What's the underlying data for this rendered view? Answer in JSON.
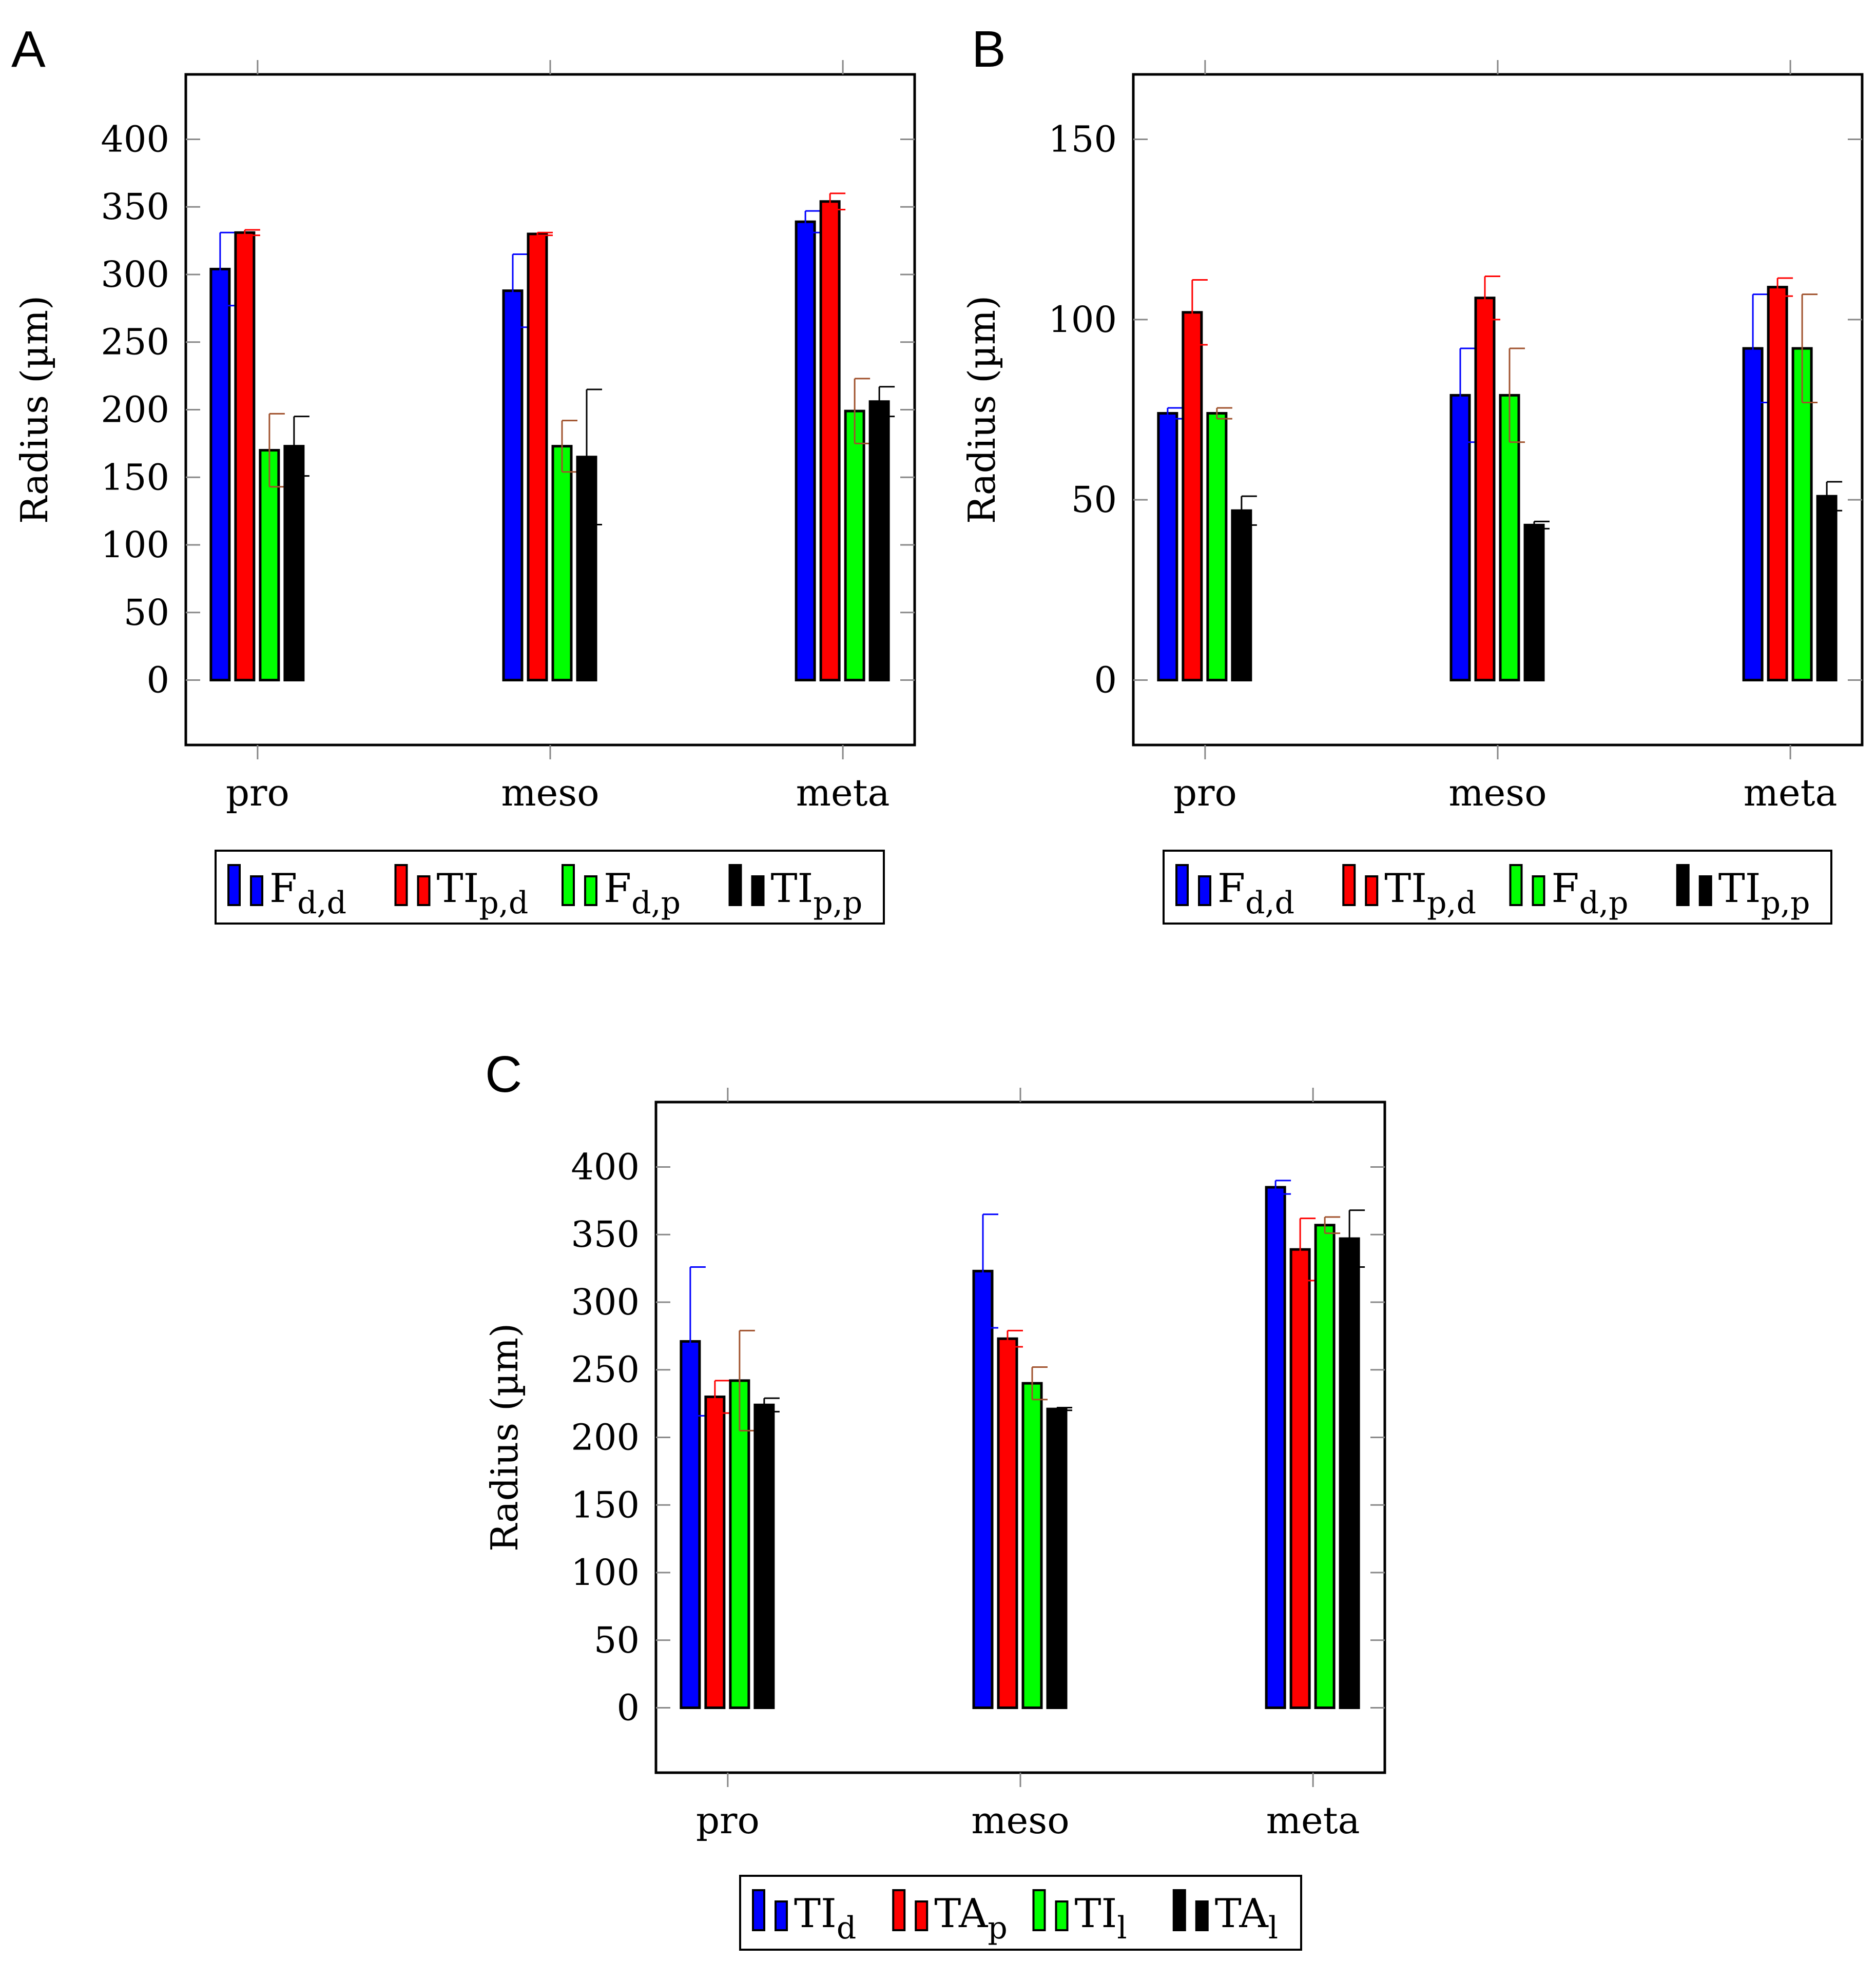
{
  "colors": {
    "blue": "#0000ff",
    "red": "#ff0000",
    "green": "#00ff00",
    "black": "#000000",
    "brown": "#a0522d"
  },
  "chart_data": [
    {
      "panel": "A",
      "type": "bar",
      "categories": [
        "pro",
        "meso",
        "meta"
      ],
      "ylabel": "Radius (µm)",
      "ylim": [
        -48,
        448
      ],
      "yticks": [
        0,
        50,
        100,
        150,
        200,
        250,
        300,
        350,
        400
      ],
      "series": [
        {
          "name": "F",
          "sub": "d,d",
          "color": "#0000ff",
          "errcolor": "#0000ff",
          "values": [
            304,
            288,
            339
          ],
          "err": [
            27,
            27,
            8
          ]
        },
        {
          "name": "TI",
          "sub": "p,d",
          "color": "#ff0000",
          "errcolor": "#ff0000",
          "values": [
            331,
            330,
            354
          ],
          "err": [
            2,
            1,
            6
          ]
        },
        {
          "name": "F",
          "sub": "d,p",
          "color": "#00ff00",
          "errcolor": "#a0522d",
          "values": [
            170,
            173,
            199
          ],
          "err": [
            27,
            19,
            24
          ]
        },
        {
          "name": "TI",
          "sub": "p,p",
          "color": "#000000",
          "errcolor": "#000000",
          "values": [
            173,
            165,
            206
          ],
          "err": [
            22,
            50,
            11
          ]
        }
      ]
    },
    {
      "panel": "B",
      "type": "bar",
      "categories": [
        "pro",
        "meso",
        "meta"
      ],
      "ylabel": "Radius (µm)",
      "ylim": [
        -18,
        168
      ],
      "yticks": [
        0,
        50,
        100,
        150
      ],
      "series": [
        {
          "name": "F",
          "sub": "d,d",
          "color": "#0000ff",
          "errcolor": "#0000ff",
          "values": [
            74,
            79,
            92
          ],
          "err": [
            1.5,
            13,
            15
          ]
        },
        {
          "name": "TI",
          "sub": "p,d",
          "color": "#ff0000",
          "errcolor": "#ff0000",
          "values": [
            102,
            106,
            109
          ],
          "err": [
            9,
            6,
            2.5
          ]
        },
        {
          "name": "F",
          "sub": "d,p",
          "color": "#00ff00",
          "errcolor": "#a0522d",
          "values": [
            74,
            79,
            92
          ],
          "err": [
            1.5,
            13,
            15
          ]
        },
        {
          "name": "TI",
          "sub": "p,p",
          "color": "#000000",
          "errcolor": "#000000",
          "values": [
            47,
            43,
            51
          ],
          "err": [
            4,
            1,
            4
          ]
        }
      ]
    },
    {
      "panel": "C",
      "type": "bar",
      "categories": [
        "pro",
        "meso",
        "meta"
      ],
      "ylabel": "Radius (µm)",
      "ylim": [
        -48,
        448
      ],
      "yticks": [
        0,
        50,
        100,
        150,
        200,
        250,
        300,
        350,
        400
      ],
      "series": [
        {
          "name": "TI",
          "sub": "d",
          "color": "#0000ff",
          "errcolor": "#0000ff",
          "values": [
            271,
            323,
            385
          ],
          "err": [
            55,
            42,
            5
          ]
        },
        {
          "name": "TA",
          "sub": "p",
          "color": "#ff0000",
          "errcolor": "#ff0000",
          "values": [
            230,
            273,
            339
          ],
          "err": [
            12,
            6,
            23
          ]
        },
        {
          "name": "TI",
          "sub": "l",
          "color": "#00ff00",
          "errcolor": "#a0522d",
          "values": [
            242,
            240,
            357
          ],
          "err": [
            37,
            12,
            6
          ]
        },
        {
          "name": "TA",
          "sub": "l",
          "color": "#000000",
          "errcolor": "#000000",
          "values": [
            224,
            221,
            347
          ],
          "err": [
            5,
            1,
            21
          ]
        }
      ]
    }
  ]
}
